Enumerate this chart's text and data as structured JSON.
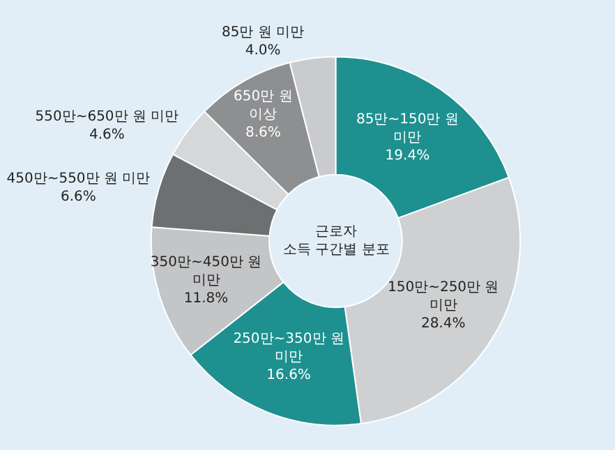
{
  "chart_data": {
    "type": "donut",
    "title": "근로자 소득 구간별 분포",
    "categories": [
      "85만~150만 원 미만",
      "150만~250만 원 미만",
      "250만~350만 원 미만",
      "350만~450만 원 미만",
      "450만~550만 원 미만",
      "550만~650만 원 미만",
      "650만 원 이상",
      "85만 원 미만"
    ],
    "values": [
      19.4,
      28.4,
      16.6,
      11.8,
      6.6,
      4.6,
      8.6,
      4.0
    ],
    "value_labels": [
      "19.4%",
      "28.4%",
      "16.6%",
      "11.8%",
      "6.6%",
      "4.6%",
      "8.6%",
      "4.0%"
    ],
    "colors": [
      "#1e9090",
      "#cfd0d2",
      "#1e9090",
      "#c4c5c7",
      "#6e6f71",
      "#d6d7d9",
      "#8e8f91",
      "#cacbcd"
    ],
    "legend": false
  }
}
